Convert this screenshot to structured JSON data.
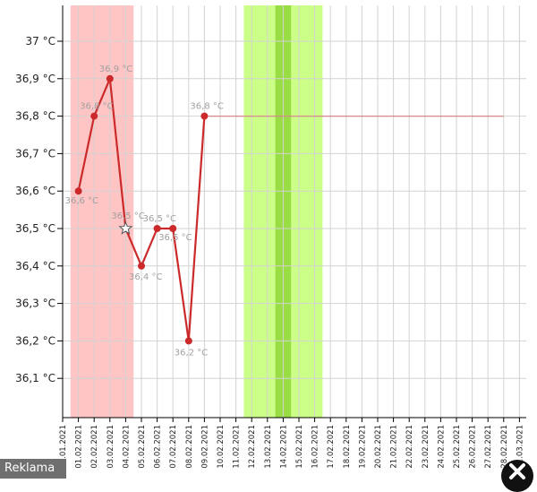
{
  "chart_data": {
    "type": "line",
    "title": "",
    "xlabel": "",
    "ylabel": "",
    "ylim": [
      36.0,
      37.1
    ],
    "yticks": [
      36.1,
      36.2,
      36.3,
      36.4,
      36.5,
      36.6,
      36.7,
      36.8,
      36.9,
      37.0
    ],
    "ytick_labels": [
      "36,1 °C",
      "36,2 °C",
      "36,3 °C",
      "36,4 °C",
      "36,5 °C",
      "36,6 °C",
      "36,7 °C",
      "36,8 °C",
      "36,9 °C",
      "37 °C"
    ],
    "categories": [
      "31.01.2021",
      "01.02.2021",
      "02.02.2021",
      "03.02.2021",
      "04.02.2021",
      "05.02.2021",
      "06.02.2021",
      "07.02.2021",
      "08.02.2021",
      "09.02.2021",
      "10.02.2021",
      "11.02.2021",
      "12.02.2021",
      "13.02.2021",
      "14.02.2021",
      "15.02.2021",
      "16.02.2021",
      "17.02.2021",
      "18.02.2021",
      "19.02.2021",
      "20.02.2021",
      "21.02.2021",
      "22.02.2021",
      "23.02.2021",
      "24.02.2021",
      "25.02.2021",
      "26.02.2021",
      "27.02.2021",
      "28.02.2021",
      "01.03.2021"
    ],
    "series": [
      {
        "color": "#cc2a2a",
        "points": [
          {
            "x": "01.02.2021",
            "y": 36.6,
            "label": "36,6 °C",
            "marker": "dot"
          },
          {
            "x": "02.02.2021",
            "y": 36.8,
            "label": "36,8 °C",
            "marker": "dot"
          },
          {
            "x": "03.02.2021",
            "y": 36.9,
            "label": "36,9 °C",
            "marker": "dot"
          },
          {
            "x": "04.02.2021",
            "y": 36.5,
            "label": "36,5 °C",
            "marker": "star"
          },
          {
            "x": "05.02.2021",
            "y": 36.4,
            "label": "36,4 °C",
            "marker": "dot"
          },
          {
            "x": "06.02.2021",
            "y": 36.5,
            "label": "36,5 °C",
            "marker": "dot"
          },
          {
            "x": "07.02.2021",
            "y": 36.5,
            "label": "36,5 °C",
            "marker": "dot"
          },
          {
            "x": "08.02.2021",
            "y": 36.2,
            "label": "36,2 °C",
            "marker": "dot"
          },
          {
            "x": "09.02.2021",
            "y": 36.8,
            "label": "36,8 °C",
            "marker": "dot"
          }
        ]
      }
    ],
    "projection": {
      "from": "09.02.2021",
      "to": "28.02.2021",
      "y": 36.8,
      "color": "#d88a8a"
    },
    "bands": [
      {
        "from": "31.01.2021",
        "to": "04.02.2021",
        "color": "#ffc4c4"
      },
      {
        "from": "11.02.2021",
        "to": "16.02.2021",
        "color": "#ccff88"
      },
      {
        "from": "13.02.2021",
        "to": "14.02.2021",
        "color": "#99dd44"
      }
    ],
    "grid": true,
    "colors": {
      "grid": "#d2d2d2",
      "axis": "#000000",
      "line": "#cc2a2a"
    }
  },
  "ad": {
    "label": "Reklama"
  }
}
